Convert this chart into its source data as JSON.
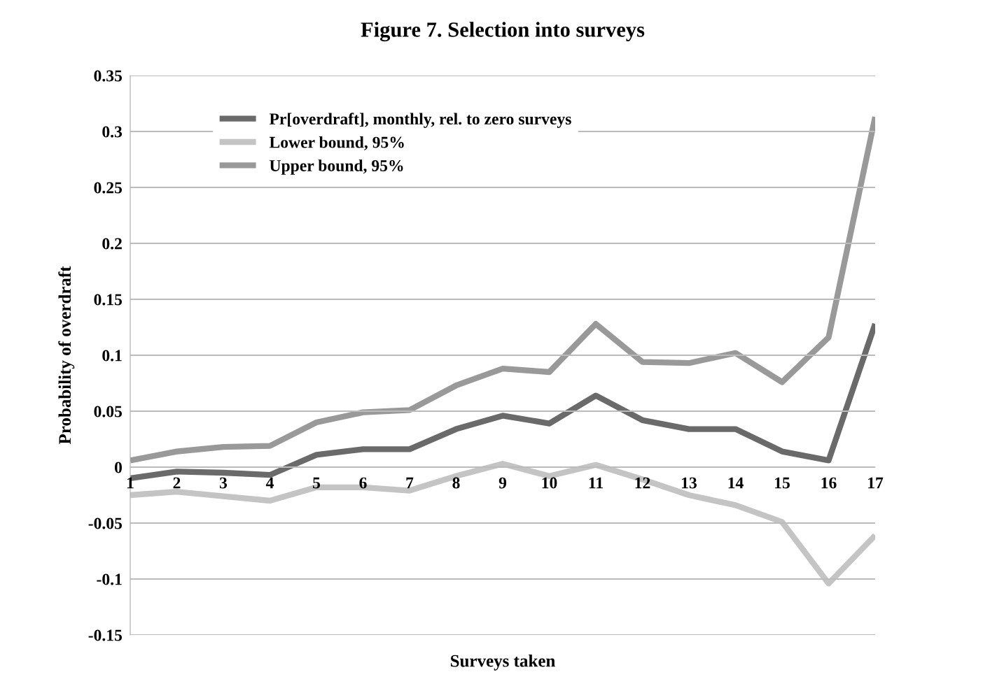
{
  "chart_data": {
    "type": "line",
    "title": "Figure 7. Selection into surveys",
    "xlabel": "Surveys taken",
    "ylabel": "Probability of overdraft",
    "categories": [
      "1",
      "2",
      "3",
      "4",
      "5",
      "6",
      "7",
      "8",
      "9",
      "10",
      "11",
      "12",
      "13",
      "14",
      "15",
      "16",
      "17"
    ],
    "series": [
      {
        "name": "Pr[overdraft], monthly, rel. to zero surveys",
        "color": "#6a6a6a",
        "values": [
          -0.01,
          -0.004,
          -0.005,
          -0.007,
          0.011,
          0.016,
          0.016,
          0.034,
          0.046,
          0.039,
          0.064,
          0.042,
          0.034,
          0.034,
          0.014,
          0.006,
          0.128
        ]
      },
      {
        "name": "Lower bound, 95%",
        "color": "#c4c4c4",
        "values": [
          -0.025,
          -0.022,
          -0.026,
          -0.03,
          -0.018,
          -0.018,
          -0.021,
          -0.008,
          0.003,
          -0.008,
          0.002,
          -0.011,
          -0.025,
          -0.034,
          -0.049,
          -0.104,
          -0.061
        ]
      },
      {
        "name": "Upper bound, 95%",
        "color": "#999999",
        "values": [
          0.006,
          0.014,
          0.018,
          0.019,
          0.04,
          0.049,
          0.051,
          0.073,
          0.088,
          0.085,
          0.128,
          0.094,
          0.093,
          0.102,
          0.076,
          0.116,
          0.313
        ]
      }
    ],
    "ylim": [
      -0.15,
      0.35
    ],
    "yticks": [
      -0.15,
      -0.1,
      -0.05,
      0,
      0.05,
      0.1,
      0.15,
      0.2,
      0.25,
      0.3,
      0.35
    ],
    "grid": "y",
    "legend": "top left",
    "marker": "none",
    "line_style": "solid"
  }
}
